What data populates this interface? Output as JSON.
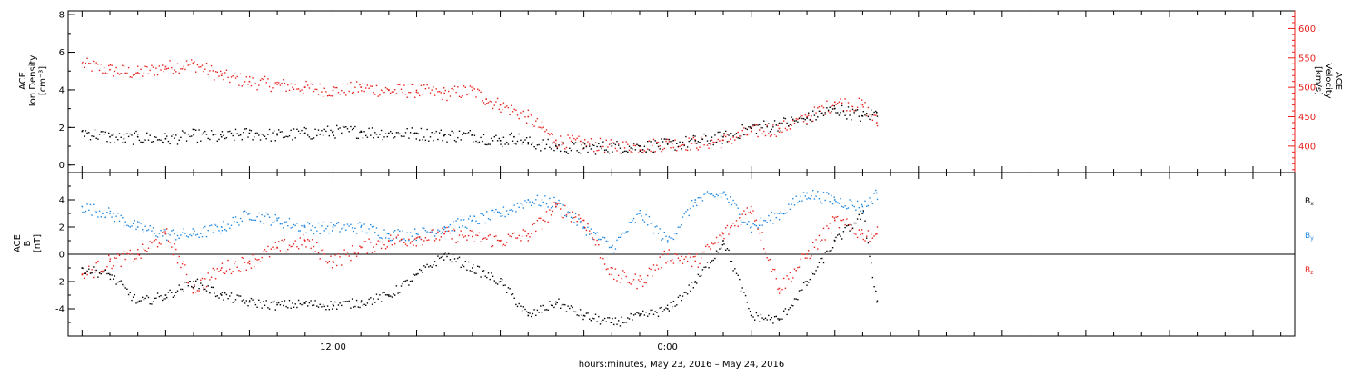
{
  "footer": {
    "xlabel": "hours:minutes, May 23, 2016 – May 24, 2016"
  },
  "colors": {
    "black": "#000000",
    "red": "#e8201c",
    "blue": "#1f87e0"
  },
  "chart_data": [
    {
      "type": "scatter",
      "panel": "top",
      "ylabel_lines": [
        "ACE",
        "Ion Density",
        "[cm⁻³]"
      ],
      "ylabel2_lines": [
        "ACE",
        "Velocity",
        "[km/s]"
      ],
      "x_axis": {
        "unit": "hours since 2016-05-23 00:00 (UT)",
        "range": [
          2.5,
          46.5
        ],
        "tick_labels": [
          {
            "x": 12,
            "label": "12:00"
          },
          {
            "x": 24,
            "label": "0:00"
          }
        ]
      },
      "y_left": {
        "range": [
          -0.4,
          8.2
        ],
        "ticks": [
          0,
          2,
          4,
          6,
          8
        ]
      },
      "y_right": {
        "range": [
          355,
          630
        ],
        "ticks": [
          400,
          450,
          500,
          550,
          600
        ]
      },
      "series": [
        {
          "name": "",
          "axis": "left",
          "color": "#000000",
          "x": [
            3.0,
            4.0,
            4.5,
            5.0,
            6.0,
            7.0,
            8.0,
            9.0,
            10.0,
            11.0,
            12.0,
            13.0,
            14.0,
            15.0,
            16.0,
            17.0,
            18.0,
            18.5,
            19.0,
            20.0,
            21.0,
            22.0,
            23.0,
            24.0,
            25.0,
            26.0,
            27.0,
            28.0,
            29.0,
            30.0,
            31.0,
            31.5
          ],
          "y": [
            1.8,
            1.5,
            1.4,
            1.5,
            1.4,
            1.6,
            1.5,
            1.7,
            1.6,
            1.7,
            1.8,
            1.8,
            1.7,
            1.7,
            1.6,
            1.6,
            1.3,
            1.5,
            1.2,
            1.0,
            0.9,
            1.0,
            1.0,
            1.1,
            1.3,
            1.5,
            2.0,
            2.2,
            2.5,
            3.0,
            2.6,
            2.8
          ]
        },
        {
          "name": "",
          "axis": "right",
          "color": "#e8201c",
          "x": [
            3.0,
            4.0,
            5.0,
            6.0,
            7.0,
            8.0,
            9.0,
            10.0,
            11.0,
            12.0,
            13.0,
            14.0,
            15.0,
            16.0,
            17.0,
            17.5,
            18.0,
            19.0,
            19.5,
            20.0,
            21.0,
            22.0,
            23.0,
            24.0,
            25.0,
            26.0,
            27.0,
            28.0,
            29.0,
            30.0,
            31.0,
            31.5
          ],
          "y": [
            540,
            530,
            525,
            535,
            540,
            520,
            510,
            505,
            500,
            495,
            500,
            495,
            495,
            490,
            495,
            480,
            470,
            450,
            430,
            410,
            405,
            400,
            400,
            405,
            405,
            410,
            425,
            430,
            450,
            475,
            470,
            440
          ]
        }
      ]
    },
    {
      "type": "scatter",
      "panel": "bottom",
      "ylabel_lines": [
        "ACE",
        "B",
        "[nT]"
      ],
      "x_axis": {
        "unit": "hours since 2016-05-23 00:00 (UT)",
        "range": [
          2.5,
          46.5
        ],
        "tick_labels": [
          {
            "x": 12,
            "label": "12:00"
          },
          {
            "x": 24,
            "label": "0:00"
          }
        ]
      },
      "y_left": {
        "range": [
          -6.0,
          6.0
        ],
        "ticks": [
          -4,
          -2,
          0,
          2,
          4
        ]
      },
      "legend": [
        "Bx",
        "By",
        "Bz"
      ],
      "series": [
        {
          "name": "Bx",
          "color": "#000000",
          "x": [
            3.0,
            4.0,
            5.0,
            6.0,
            7.0,
            8.0,
            9.0,
            10.0,
            11.0,
            12.0,
            13.0,
            14.0,
            15.0,
            16.0,
            17.0,
            18.0,
            19.0,
            20.0,
            21.0,
            22.0,
            23.0,
            24.0,
            25.0,
            26.0,
            27.0,
            28.0,
            29.0,
            30.0,
            31.0,
            31.5
          ],
          "y": [
            -1.0,
            -1.5,
            -3.5,
            -3.0,
            -2.0,
            -3.0,
            -3.5,
            -3.7,
            -3.6,
            -3.7,
            -3.5,
            -3.0,
            -1.5,
            0.0,
            -1.0,
            -2.0,
            -4.5,
            -3.5,
            -4.5,
            -5.0,
            -4.5,
            -4.0,
            -2.0,
            1.0,
            -4.5,
            -4.8,
            -2.0,
            1.0,
            3.0,
            -3.5
          ]
        },
        {
          "name": "By",
          "color": "#1f87e0",
          "x": [
            3.0,
            4.0,
            5.0,
            6.0,
            7.0,
            8.0,
            9.0,
            10.0,
            11.0,
            12.0,
            13.0,
            14.0,
            15.0,
            16.0,
            17.0,
            18.0,
            19.0,
            20.0,
            21.0,
            22.0,
            23.0,
            24.0,
            25.0,
            26.0,
            27.0,
            28.0,
            29.0,
            30.0,
            31.0,
            31.5
          ],
          "y": [
            3.5,
            3.0,
            2.0,
            1.5,
            1.5,
            2.0,
            3.0,
            2.5,
            2.0,
            2.0,
            2.0,
            1.5,
            1.5,
            2.0,
            2.5,
            3.0,
            4.0,
            3.8,
            2.0,
            0.5,
            3.0,
            1.0,
            4.0,
            4.5,
            2.0,
            3.0,
            4.5,
            4.0,
            3.5,
            4.5
          ]
        },
        {
          "name": "Bz",
          "color": "#e8201c",
          "x": [
            3.0,
            4.0,
            5.0,
            6.0,
            7.0,
            8.0,
            9.0,
            10.0,
            11.0,
            12.0,
            13.0,
            14.0,
            15.0,
            16.0,
            17.0,
            18.0,
            19.0,
            20.0,
            21.0,
            22.0,
            23.0,
            24.0,
            25.0,
            26.0,
            27.0,
            28.0,
            29.0,
            30.0,
            31.0,
            31.5
          ],
          "y": [
            -1.5,
            -0.5,
            0.0,
            1.5,
            -2.5,
            -1.0,
            -0.5,
            0.5,
            1.0,
            -0.5,
            0.5,
            1.0,
            1.2,
            1.5,
            1.3,
            1.0,
            1.5,
            3.5,
            2.5,
            -1.5,
            -2.0,
            0.0,
            -0.5,
            1.5,
            3.5,
            -2.5,
            0.0,
            2.5,
            1.5,
            1.5
          ]
        }
      ]
    }
  ]
}
